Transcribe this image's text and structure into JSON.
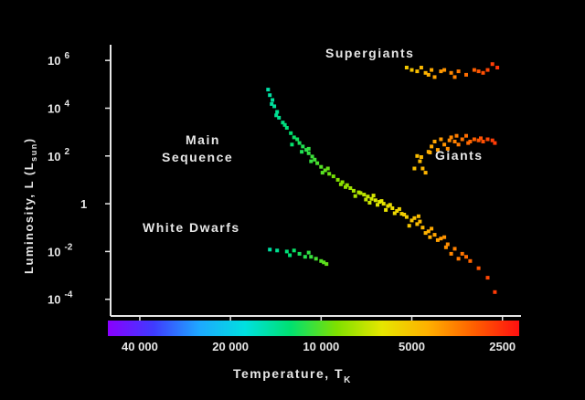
{
  "chart_data": {
    "type": "scatter",
    "xlabel": "Temperature, T",
    "xlabel_sub": "K",
    "ylabel": "Luminosity, L (L",
    "ylabel_sub": "sun",
    "ylabel_close": ")",
    "x_scale": "log-reversed",
    "xlim": [
      50000,
      2200
    ],
    "y_scale": "log",
    "ylim": [
      2e-05,
      10000000
    ],
    "x_ticks": [
      {
        "value": 40000,
        "label": "40 000"
      },
      {
        "value": 20000,
        "label": "20 000"
      },
      {
        "value": 10000,
        "label": "10 000"
      },
      {
        "value": 5000,
        "label": "5000"
      },
      {
        "value": 2500,
        "label": "2500"
      }
    ],
    "y_ticks": [
      {
        "value": 1000000,
        "base": "10",
        "exp": "6"
      },
      {
        "value": 10000,
        "base": "10",
        "exp": "4"
      },
      {
        "value": 100,
        "base": "10",
        "exp": "2"
      },
      {
        "value": 1,
        "base": "1",
        "exp": ""
      },
      {
        "value": 0.01,
        "base": "10",
        "exp": "-2"
      },
      {
        "value": 0.0001,
        "base": "10",
        "exp": "-4"
      }
    ],
    "colorbar": [
      "#8a00ff",
      "#3f3bff",
      "#1ea8ff",
      "#00e0e0",
      "#00e070",
      "#7ee000",
      "#e6e600",
      "#ffb000",
      "#ff6000",
      "#ff1010"
    ],
    "grid": false,
    "annotations": [
      {
        "id": "supergiants",
        "lines": [
          "Supergiants"
        ]
      },
      {
        "id": "giants",
        "lines": [
          "Giants"
        ]
      },
      {
        "id": "main-sequence",
        "lines": [
          "Main",
          "Sequence"
        ]
      },
      {
        "id": "white-dwarfs",
        "lines": [
          "White Dwarfs"
        ]
      }
    ],
    "series": [
      {
        "group": "main-sequence",
        "points": [
          [
            15000,
            60000
          ],
          [
            14800,
            35000
          ],
          [
            14500,
            22000
          ],
          [
            14300,
            12000
          ],
          [
            14000,
            7000
          ],
          [
            13800,
            4000
          ],
          [
            13400,
            2500
          ],
          [
            13000,
            1500
          ],
          [
            12600,
            900
          ],
          [
            12300,
            600
          ],
          [
            12000,
            500
          ],
          [
            11800,
            350
          ],
          [
            11500,
            250
          ],
          [
            11200,
            180
          ],
          [
            11000,
            130
          ],
          [
            10700,
            95
          ],
          [
            10500,
            70
          ],
          [
            10300,
            50
          ],
          [
            10000,
            35
          ],
          [
            9700,
            25
          ],
          [
            9400,
            18
          ],
          [
            9100,
            14
          ],
          [
            8800,
            10
          ],
          [
            8500,
            8
          ],
          [
            8200,
            6
          ],
          [
            8000,
            4.5
          ],
          [
            7800,
            3.5
          ],
          [
            7500,
            3
          ],
          [
            7200,
            2.4
          ],
          [
            7000,
            2
          ],
          [
            6800,
            1.6
          ],
          [
            6600,
            1.4
          ],
          [
            6400,
            1.2
          ],
          [
            6200,
            1
          ],
          [
            6000,
            0.8
          ],
          [
            5800,
            0.65
          ],
          [
            5600,
            0.5
          ],
          [
            5400,
            0.38
          ],
          [
            5200,
            0.28
          ],
          [
            5000,
            0.2
          ],
          [
            4800,
            0.14
          ],
          [
            4600,
            0.1
          ],
          [
            4400,
            0.07
          ],
          [
            4200,
            0.05
          ],
          [
            4000,
            0.035
          ],
          [
            3800,
            0.02
          ],
          [
            3600,
            0.013
          ],
          [
            3400,
            0.008
          ],
          [
            3200,
            0.004
          ],
          [
            3000,
            0.002
          ],
          [
            2800,
            0.0008
          ],
          [
            2650,
            0.0002
          ],
          [
            12500,
            300
          ],
          [
            11000,
            200
          ],
          [
            9500,
            30
          ],
          [
            8300,
            5
          ],
          [
            7400,
            2.8
          ],
          [
            6300,
            1.3
          ],
          [
            5900,
            0.9
          ],
          [
            5700,
            0.4
          ],
          [
            5300,
            0.35
          ],
          [
            4900,
            0.25
          ],
          [
            4700,
            0.18
          ],
          [
            4500,
            0.06
          ],
          [
            4300,
            0.09
          ],
          [
            4100,
            0.03
          ],
          [
            3900,
            0.04
          ],
          [
            3700,
            0.008
          ],
          [
            3500,
            0.005
          ],
          [
            3300,
            0.006
          ],
          [
            6700,
            2.2
          ],
          [
            6900,
            1.1
          ],
          [
            7100,
            1.5
          ],
          [
            7700,
            2.1
          ],
          [
            8600,
            6.5
          ],
          [
            9900,
            20
          ],
          [
            10800,
            60
          ],
          [
            11600,
            150
          ],
          [
            13200,
            2000
          ],
          [
            14100,
            5000
          ],
          [
            14600,
            15000
          ],
          [
            5500,
            0.6
          ],
          [
            5100,
            0.12
          ],
          [
            4750,
            0.3
          ],
          [
            4350,
            0.04
          ],
          [
            3850,
            0.015
          ],
          [
            6100,
            0.55
          ],
          [
            6500,
            0.9
          ]
        ]
      },
      {
        "group": "white-dwarfs",
        "points": [
          [
            14800,
            0.012
          ],
          [
            14000,
            0.011
          ],
          [
            13000,
            0.01
          ],
          [
            12300,
            0.011
          ],
          [
            11800,
            0.008
          ],
          [
            11300,
            0.006
          ],
          [
            10800,
            0.006
          ],
          [
            10400,
            0.005
          ],
          [
            10000,
            0.004
          ],
          [
            9600,
            0.003
          ],
          [
            12700,
            0.007
          ],
          [
            11000,
            0.009
          ],
          [
            9800,
            0.0035
          ]
        ]
      },
      {
        "group": "giants",
        "points": [
          [
            4800,
            100
          ],
          [
            4700,
            60
          ],
          [
            4600,
            30
          ],
          [
            4500,
            20
          ],
          [
            4400,
            150
          ],
          [
            4300,
            250
          ],
          [
            4200,
            400
          ],
          [
            4000,
            500
          ],
          [
            3900,
            300
          ],
          [
            3800,
            200
          ],
          [
            3700,
            600
          ],
          [
            3600,
            400
          ],
          [
            3500,
            300
          ],
          [
            3400,
            500
          ],
          [
            3300,
            700
          ],
          [
            3200,
            400
          ],
          [
            3100,
            500
          ],
          [
            3000,
            450
          ],
          [
            2900,
            400
          ],
          [
            2800,
            500
          ],
          [
            2700,
            450
          ],
          [
            2650,
            350
          ],
          [
            4100,
            180
          ],
          [
            3750,
            450
          ],
          [
            4900,
            30
          ],
          [
            3550,
            700
          ],
          [
            3250,
            350
          ],
          [
            2950,
            550
          ],
          [
            4650,
            90
          ],
          [
            4350,
            140
          ]
        ]
      },
      {
        "group": "supergiants",
        "points": [
          [
            5200,
            500000
          ],
          [
            5000,
            400000
          ],
          [
            4800,
            350000
          ],
          [
            4650,
            500000
          ],
          [
            4500,
            300000
          ],
          [
            4300,
            400000
          ],
          [
            4200,
            200000
          ],
          [
            4000,
            350000
          ],
          [
            3900,
            400000
          ],
          [
            3700,
            300000
          ],
          [
            3500,
            350000
          ],
          [
            3300,
            250000
          ],
          [
            3100,
            400000
          ],
          [
            3000,
            350000
          ],
          [
            2900,
            300000
          ],
          [
            2800,
            400000
          ],
          [
            2700,
            700000
          ],
          [
            2600,
            500000
          ],
          [
            4400,
            250000
          ],
          [
            3600,
            200000
          ]
        ]
      }
    ]
  }
}
